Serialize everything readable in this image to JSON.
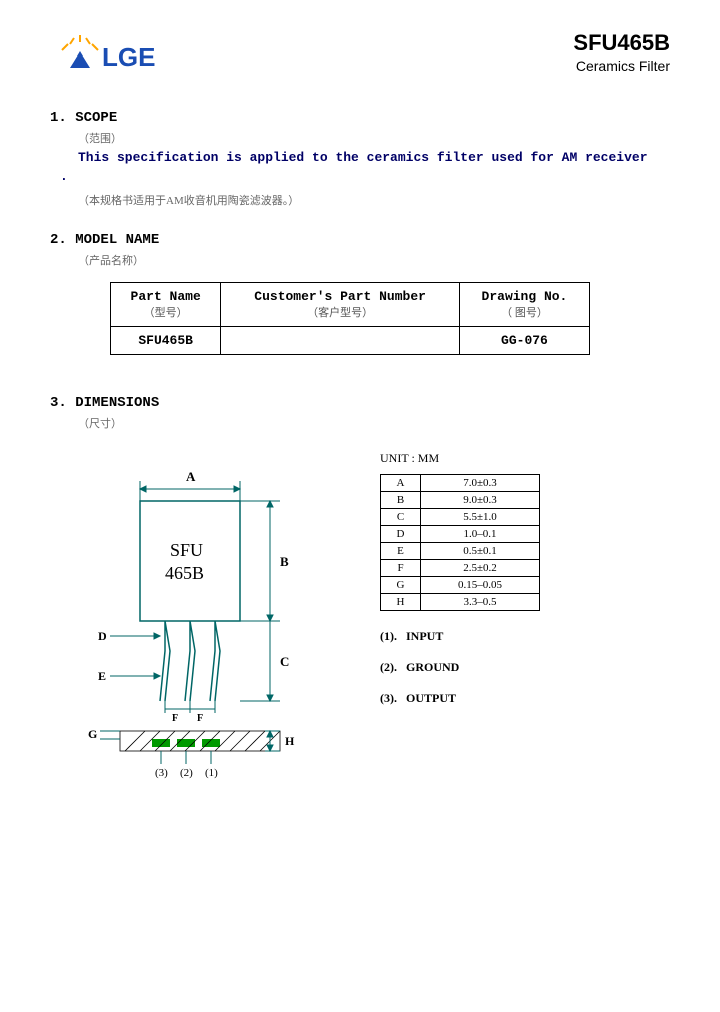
{
  "logo": {
    "text": "LGE",
    "accent1": "#ffa500",
    "accent2": "#1a4db3"
  },
  "header": {
    "part_number": "SFU465B",
    "subtitle": "Ceramics Filter"
  },
  "sections": {
    "scope": {
      "num": "1.",
      "title": "SCOPE",
      "sub_cn": "（范围）",
      "body": "This specification is applied to the ceramics filter used for AM receiver",
      "dot": ".",
      "note_cn": "（本规格书适用于AM收音机用陶瓷滤波器。）"
    },
    "model": {
      "num": "2.",
      "title": "MODEL NAME",
      "sub_cn": "（产品名称）",
      "table": {
        "headers": [
          {
            "en": "Part Name",
            "cn": "（型号）"
          },
          {
            "en": "Customer's Part Number",
            "cn": "（客户型号）"
          },
          {
            "en": "Drawing No.",
            "cn": "（ 图号）"
          }
        ],
        "row": {
          "part_name": "SFU465B",
          "customer": "",
          "drawing": "GG-076"
        }
      }
    },
    "dimensions": {
      "num": "3.",
      "title": "DIMENSIONS",
      "sub_cn": "（尺寸）"
    }
  },
  "diagram": {
    "component_label_1": "SFU",
    "component_label_2": "465B",
    "dims": {
      "A": "A",
      "B": "B",
      "C": "C",
      "D": "D",
      "E": "E",
      "F": "F",
      "G": "G",
      "H": "H"
    },
    "pin_labels": {
      "p1": "(1)",
      "p2": "(2)",
      "p3": "(3)"
    },
    "colors": {
      "line": "#006666",
      "hatch": "#000000",
      "pad": "#009900"
    }
  },
  "dim_table": {
    "unit_label": "UNIT : MM",
    "rows": [
      {
        "k": "A",
        "v": "7.0±0.3"
      },
      {
        "k": "B",
        "v": "9.0±0.3"
      },
      {
        "k": "C",
        "v": "5.5±1.0"
      },
      {
        "k": "D",
        "v": "1.0–0.1"
      },
      {
        "k": "E",
        "v": "0.5±0.1"
      },
      {
        "k": "F",
        "v": "2.5±0.2"
      },
      {
        "k": "G",
        "v": "0.15–0.05"
      },
      {
        "k": "H",
        "v": "3.3–0.5"
      }
    ]
  },
  "pins": {
    "p1": {
      "num": "(1).",
      "label": "INPUT"
    },
    "p2": {
      "num": "(2).",
      "label": "GROUND"
    },
    "p3": {
      "num": "(3).",
      "label": "OUTPUT"
    }
  }
}
